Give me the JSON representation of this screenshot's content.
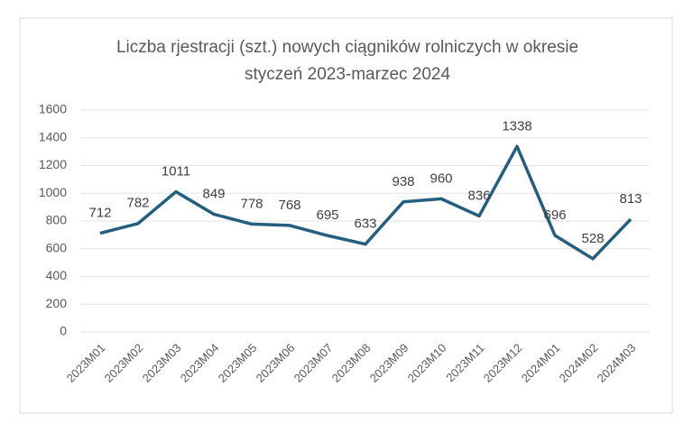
{
  "chart_data": {
    "type": "line",
    "title": "Liczba rjestracji (szt.) nowych ciągników rolniczych w okresie styczeń 2023-marzec 2024",
    "categories": [
      "2023M01",
      "2023M02",
      "2023M03",
      "2023M04",
      "2023M05",
      "2023M06",
      "2023M07",
      "2023M08",
      "2023M09",
      "2023M10",
      "2023M11",
      "2023M12",
      "2024M01",
      "2024M02",
      "2024M03"
    ],
    "values": [
      712,
      782,
      1011,
      849,
      778,
      768,
      695,
      633,
      938,
      960,
      836,
      1338,
      696,
      528,
      813
    ],
    "color": "#245f7e",
    "ylim": [
      0,
      1600
    ],
    "yticks": [
      0,
      200,
      400,
      600,
      800,
      1000,
      1200,
      1400,
      1600
    ],
    "grid": true
  }
}
